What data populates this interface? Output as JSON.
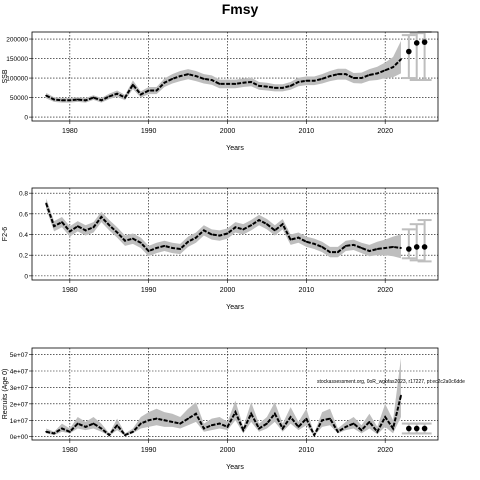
{
  "title": "Fmsy",
  "chart_data": [
    {
      "type": "line",
      "ylabel": "SSB",
      "xlabel": "Years",
      "color": "#000000",
      "band_color": "#bebebe",
      "grid": true,
      "xlim": [
        1975.2,
        2026.7
      ],
      "xticks": [
        1980,
        1990,
        2000,
        2010,
        2020
      ],
      "ylim": [
        -10000,
        218000
      ],
      "yticks": [
        0,
        50000,
        100000,
        150000,
        200000
      ],
      "x": [
        1977,
        1978,
        1979,
        1980,
        1981,
        1982,
        1983,
        1984,
        1985,
        1986,
        1987,
        1988,
        1989,
        1990,
        1991,
        1992,
        1993,
        1994,
        1995,
        1996,
        1997,
        1998,
        1999,
        2000,
        2001,
        2002,
        2003,
        2004,
        2005,
        2006,
        2007,
        2008,
        2009,
        2010,
        2011,
        2012,
        2013,
        2014,
        2015,
        2016,
        2017,
        2018,
        2019,
        2020,
        2021,
        2022
      ],
      "values": [
        55000,
        45000,
        43000,
        43000,
        45000,
        43000,
        50000,
        43000,
        53000,
        60000,
        50000,
        83000,
        58000,
        68000,
        68000,
        88000,
        98000,
        105000,
        110000,
        105000,
        98000,
        95000,
        85000,
        85000,
        85000,
        88000,
        90000,
        80000,
        78000,
        75000,
        75000,
        80000,
        90000,
        93000,
        93000,
        98000,
        105000,
        110000,
        110000,
        100000,
        100000,
        108000,
        112000,
        120000,
        128000,
        148000
      ],
      "lower": [
        48000,
        39000,
        37000,
        37000,
        39000,
        37000,
        44000,
        37000,
        46000,
        52000,
        43000,
        72000,
        50000,
        59000,
        59000,
        77000,
        86000,
        92000,
        97000,
        92000,
        86000,
        83000,
        74000,
        74000,
        74000,
        77000,
        79000,
        70000,
        68000,
        66000,
        66000,
        70000,
        79000,
        82000,
        82000,
        86000,
        92000,
        96000,
        96000,
        87000,
        86000,
        93000,
        95000,
        100000,
        102000,
        112000
      ],
      "upper": [
        62000,
        51000,
        49000,
        49000,
        51000,
        49000,
        56000,
        49000,
        60000,
        68000,
        57000,
        94000,
        66000,
        77000,
        77000,
        99000,
        110000,
        118000,
        123000,
        118000,
        110000,
        107000,
        96000,
        96000,
        96000,
        99000,
        101000,
        90000,
        88000,
        84000,
        84000,
        90000,
        101000,
        104000,
        104000,
        110000,
        118000,
        124000,
        124000,
        113000,
        114000,
        123000,
        129000,
        140000,
        154000,
        195000
      ],
      "projection": {
        "x": [
          2023,
          2024,
          2025
        ],
        "values": [
          168000,
          190000,
          192000
        ],
        "lower": [
          100000,
          95000,
          95000
        ],
        "upper": [
          210000,
          215000,
          218000
        ]
      }
    },
    {
      "type": "line",
      "ylabel": "F2-6",
      "xlabel": "Years",
      "color": "#000000",
      "band_color": "#bebebe",
      "grid": true,
      "xlim": [
        1975.2,
        2026.7
      ],
      "xticks": [
        1980,
        1990,
        2000,
        2010,
        2020
      ],
      "ylim": [
        -0.04,
        0.85
      ],
      "yticks": [
        0.0,
        0.2,
        0.4,
        0.6,
        0.8
      ],
      "x": [
        1977,
        1978,
        1979,
        1980,
        1981,
        1982,
        1983,
        1984,
        1985,
        1986,
        1987,
        1988,
        1989,
        1990,
        1991,
        1992,
        1993,
        1994,
        1995,
        1996,
        1997,
        1998,
        1999,
        2000,
        2001,
        2002,
        2003,
        2004,
        2005,
        2006,
        2007,
        2008,
        2009,
        2010,
        2011,
        2012,
        2013,
        2014,
        2015,
        2016,
        2017,
        2018,
        2019,
        2020,
        2021,
        2022
      ],
      "values": [
        0.7,
        0.48,
        0.52,
        0.43,
        0.48,
        0.44,
        0.47,
        0.57,
        0.49,
        0.42,
        0.34,
        0.36,
        0.32,
        0.24,
        0.27,
        0.29,
        0.27,
        0.26,
        0.33,
        0.37,
        0.44,
        0.4,
        0.39,
        0.41,
        0.47,
        0.45,
        0.49,
        0.54,
        0.5,
        0.44,
        0.5,
        0.35,
        0.37,
        0.33,
        0.31,
        0.28,
        0.23,
        0.23,
        0.29,
        0.3,
        0.27,
        0.24,
        0.26,
        0.27,
        0.28,
        0.27
      ],
      "lower": [
        0.65,
        0.43,
        0.47,
        0.38,
        0.43,
        0.39,
        0.42,
        0.52,
        0.44,
        0.37,
        0.29,
        0.31,
        0.27,
        0.19,
        0.22,
        0.24,
        0.22,
        0.21,
        0.28,
        0.32,
        0.39,
        0.35,
        0.34,
        0.36,
        0.42,
        0.4,
        0.44,
        0.49,
        0.45,
        0.39,
        0.45,
        0.3,
        0.32,
        0.28,
        0.26,
        0.23,
        0.18,
        0.18,
        0.24,
        0.25,
        0.22,
        0.19,
        0.2,
        0.2,
        0.19,
        0.17
      ],
      "upper": [
        0.75,
        0.53,
        0.57,
        0.48,
        0.53,
        0.49,
        0.52,
        0.62,
        0.54,
        0.47,
        0.39,
        0.41,
        0.37,
        0.29,
        0.32,
        0.34,
        0.32,
        0.31,
        0.38,
        0.42,
        0.49,
        0.45,
        0.44,
        0.46,
        0.52,
        0.5,
        0.54,
        0.59,
        0.55,
        0.49,
        0.55,
        0.4,
        0.42,
        0.38,
        0.36,
        0.33,
        0.28,
        0.28,
        0.34,
        0.35,
        0.32,
        0.3,
        0.33,
        0.35,
        0.38,
        0.4
      ],
      "projection": {
        "x": [
          2023,
          2024,
          2025
        ],
        "values": [
          0.26,
          0.28,
          0.28
        ],
        "lower": [
          0.17,
          0.15,
          0.14
        ],
        "upper": [
          0.45,
          0.5,
          0.54
        ]
      }
    },
    {
      "type": "line",
      "ylabel": "Recruits (Age 0)",
      "xlabel": "Years",
      "color": "#000000",
      "band_color": "#bebebe",
      "grid": true,
      "annotation": "stockassessment.org, 0oR_wgbfas2023, r17227, pt:ec2c2a0c6dde",
      "xlim": [
        1975.2,
        2026.7
      ],
      "xticks": [
        1980,
        1990,
        2000,
        2010,
        2020
      ],
      "ylim": [
        -2000000,
        54000000
      ],
      "yticks": [
        {
          "value": 0,
          "label": "0e+00"
        },
        {
          "value": 10000000,
          "label": "1e+07"
        },
        {
          "value": 20000000,
          "label": "2e+07"
        },
        {
          "value": 30000000,
          "label": "3e+07"
        },
        {
          "value": 40000000,
          "label": "4e+07"
        },
        {
          "value": 50000000,
          "label": "5e+07"
        }
      ],
      "x": [
        1977,
        1978,
        1979,
        1980,
        1981,
        1982,
        1983,
        1984,
        1985,
        1986,
        1987,
        1988,
        1989,
        1990,
        1991,
        1992,
        1993,
        1994,
        1995,
        1996,
        1997,
        1998,
        1999,
        2000,
        2001,
        2002,
        2003,
        2004,
        2005,
        2006,
        2007,
        2008,
        2009,
        2010,
        2011,
        2012,
        2013,
        2014,
        2015,
        2016,
        2017,
        2018,
        2019,
        2020,
        2021,
        2022
      ],
      "values": [
        3000000,
        2000000,
        5000000,
        3000000,
        8000000,
        6000000,
        8000000,
        5000000,
        1000000,
        7000000,
        1000000,
        3000000,
        8000000,
        10000000,
        11000000,
        10000000,
        9000000,
        8000000,
        11000000,
        14000000,
        5000000,
        7000000,
        8000000,
        6000000,
        15000000,
        4000000,
        14000000,
        5000000,
        8000000,
        14000000,
        5000000,
        12000000,
        6000000,
        11000000,
        1000000,
        10000000,
        11000000,
        3000000,
        6000000,
        8000000,
        4000000,
        9000000,
        3000000,
        12000000,
        5000000,
        25000000
      ],
      "lower": [
        2000000,
        1000000,
        3000000,
        2000000,
        5000000,
        4000000,
        5000000,
        3000000,
        500000,
        4000000,
        500000,
        2000000,
        5000000,
        6000000,
        7000000,
        6000000,
        6000000,
        5000000,
        7000000,
        9000000,
        3000000,
        4000000,
        5000000,
        4000000,
        10000000,
        2000000,
        9000000,
        3000000,
        5000000,
        9000000,
        3000000,
        8000000,
        4000000,
        7000000,
        500000,
        6000000,
        7000000,
        2000000,
        4000000,
        5000000,
        2000000,
        5000000,
        1500000,
        6000000,
        2000000,
        12000000
      ],
      "upper": [
        5000000,
        3000000,
        8000000,
        5000000,
        12000000,
        9000000,
        12000000,
        8000000,
        2000000,
        11000000,
        2000000,
        5000000,
        12000000,
        15000000,
        17000000,
        15000000,
        14000000,
        12000000,
        17000000,
        21000000,
        8000000,
        11000000,
        12000000,
        9000000,
        22000000,
        6000000,
        21000000,
        8000000,
        12000000,
        21000000,
        8000000,
        18000000,
        9000000,
        17000000,
        2000000,
        15000000,
        17000000,
        5000000,
        9000000,
        12000000,
        7000000,
        14000000,
        6000000,
        20000000,
        10000000,
        48000000
      ],
      "projection": {
        "x": [
          2023,
          2024,
          2025
        ],
        "values": [
          5000000,
          5000000,
          5000000
        ],
        "lower": [
          2000000,
          2000000,
          2000000
        ],
        "upper": [
          8000000,
          8000000,
          8000000
        ]
      }
    }
  ]
}
